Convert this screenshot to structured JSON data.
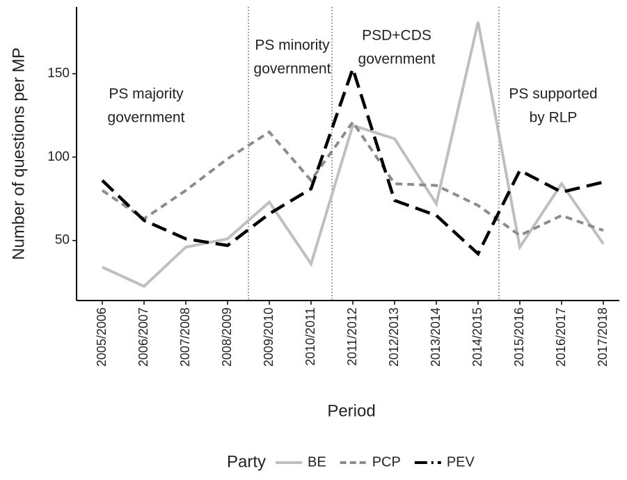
{
  "chart_data": {
    "type": "line",
    "x_label": "Period",
    "y_label": "Number of questions per MP",
    "categories": [
      "2005/2006",
      "2006/2007",
      "2007/2008",
      "2008/2009",
      "2009/2010",
      "2010/2011",
      "2011/2012",
      "2012/2013",
      "2013/2014",
      "2014/2015",
      "2015/2016",
      "2016/2017",
      "2017/2018"
    ],
    "series": [
      {
        "name": "BE",
        "color": "#bfbfbf",
        "dash": "solid",
        "values": [
          34,
          22.5,
          46,
          51,
          73,
          36,
          119,
          111,
          72,
          181,
          46,
          84,
          48
        ]
      },
      {
        "name": "PCP",
        "color": "#8c8c8c",
        "dash": "dashed",
        "values": [
          80,
          63,
          80,
          99,
          115,
          86,
          121,
          84,
          83,
          71,
          53,
          65,
          56
        ]
      },
      {
        "name": "PEV",
        "color": "#000000",
        "dash": "longdash",
        "values": [
          86,
          62,
          51,
          47,
          66,
          81,
          153,
          74,
          65,
          42,
          92,
          79,
          85
        ]
      }
    ],
    "ylim": [
      14,
      190
    ],
    "yticks": [
      50,
      100,
      150
    ],
    "grid": false,
    "legend": {
      "title": "Party",
      "position": "bottom"
    },
    "annotations": [
      {
        "lines": [
          "PS majority",
          "government"
        ]
      },
      {
        "lines": [
          "PS minority",
          "government"
        ]
      },
      {
        "lines": [
          "PSD+CDS",
          "government"
        ]
      },
      {
        "lines": [
          "PS supported",
          "by RLP"
        ]
      }
    ]
  }
}
